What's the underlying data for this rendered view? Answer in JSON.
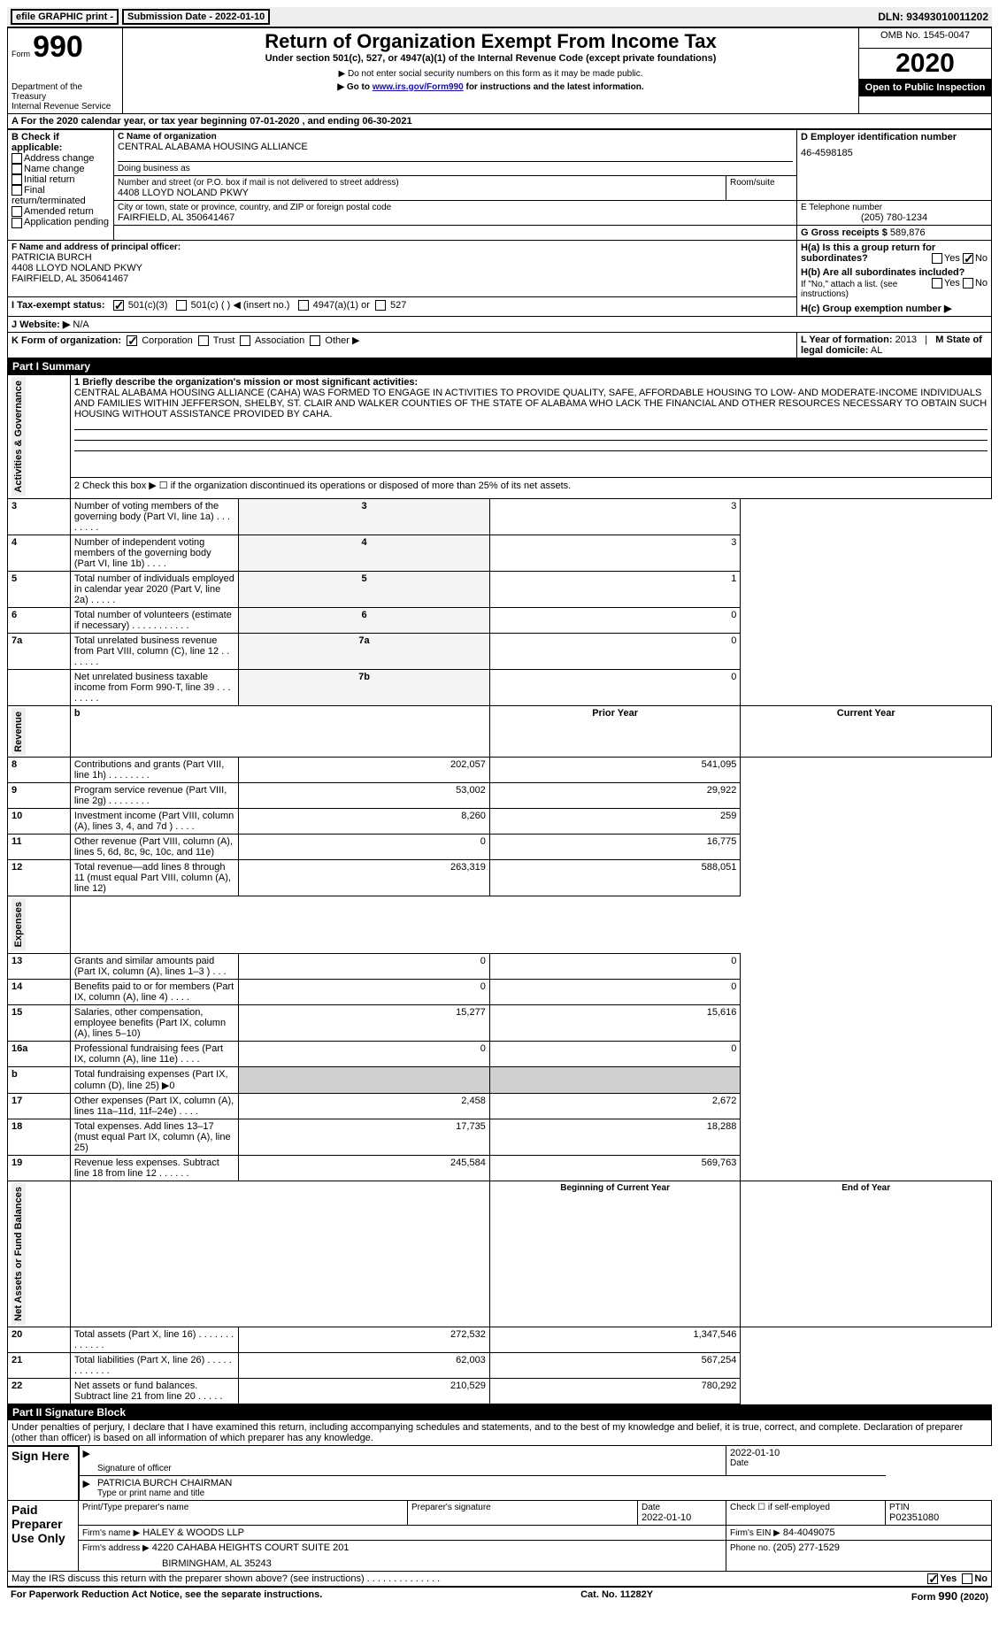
{
  "header": {
    "graphic_print": "efile GRAPHIC print -",
    "submission_date": "Submission Date - 2022-01-10",
    "dln": "DLN: 93493010011202"
  },
  "top_block": {
    "form_word": "Form",
    "form_number": "990",
    "dept": "Department of the Treasury\nInternal Revenue Service",
    "title": "Return of Organization Exempt From Income Tax",
    "subtitle": "Under section 501(c), 527, or 4947(a)(1) of the Internal Revenue Code (except private foundations)",
    "warn": "▶ Do not enter social security numbers on this form as it may be made public.",
    "goto": "▶ Go to www.irs.gov/Form990 for instructions and the latest information.",
    "goto_link": "www.irs.gov/Form990",
    "omb": "OMB No. 1545-0047",
    "year": "2020",
    "open": "Open to Public Inspection"
  },
  "period": "A For the 2020 calendar year, or tax year beginning 07-01-2020    , and ending 06-30-2021",
  "sectionB": {
    "label": "B Check if applicable:",
    "items": [
      "Address change",
      "Name change",
      "Initial return",
      "Final return/terminated",
      "Amended return",
      "Application pending"
    ]
  },
  "sectionC": {
    "name_label": "C Name of organization",
    "name": "CENTRAL ALABAMA HOUSING ALLIANCE",
    "dba_label": "Doing business as",
    "street_label": "Number and street (or P.O. box if mail is not delivered to street address)",
    "street": "4408 LLOYD NOLAND PKWY",
    "room_label": "Room/suite",
    "city_label": "City or town, state or province, country, and ZIP or foreign postal code",
    "city": "FAIRFIELD, AL  350641467"
  },
  "sectionD": {
    "label": "D Employer identification number",
    "value": "46-4598185"
  },
  "sectionE": {
    "label": "E Telephone number",
    "value": "(205) 780-1234"
  },
  "sectionG": {
    "label": "G Gross receipts $",
    "value": "589,876"
  },
  "sectionF": {
    "label": "F Name and address of principal officer:",
    "name": "PATRICIA BURCH",
    "line2": "4408 LLOYD NOLAND PKWY",
    "line3": "FAIRFIELD, AL  350641467"
  },
  "sectionH": {
    "a": "H(a)  Is this a group return for subordinates?",
    "b": "H(b) Are all subordinates included?",
    "b2": "If \"No,\" attach a list. (see instructions)",
    "c": "H(c) Group exemption number ▶",
    "yes": "Yes",
    "no": "No"
  },
  "sectionI": {
    "label": "I  Tax-exempt status:",
    "opt1": "501(c)(3)",
    "opt2": "501(c) (  ) ◀ (insert no.)",
    "opt3": "4947(a)(1) or",
    "opt4": "527"
  },
  "sectionJ": {
    "label": "J Website: ▶",
    "value": "N/A"
  },
  "sectionK": {
    "label": "K Form of organization:",
    "opts": [
      "Corporation",
      "Trust",
      "Association",
      "Other ▶"
    ]
  },
  "sectionL": {
    "label": "L Year of formation:",
    "value": "2013"
  },
  "sectionM": {
    "label": "M State of legal domicile:",
    "value": "AL"
  },
  "part1": {
    "header": "Part I      Summary",
    "rot_activities": "Activities & Governance",
    "rot_revenue": "Revenue",
    "rot_expenses": "Expenses",
    "rot_net": "Net Assets or Fund Balances",
    "line1_label": "1  Briefly describe the organization's mission or most significant activities:",
    "line1_text": "CENTRAL ALABAMA HOUSING ALLIANCE (CAHA) WAS FORMED TO ENGAGE IN ACTIVITIES TO PROVIDE QUALITY, SAFE, AFFORDABLE HOUSING TO LOW- AND MODERATE-INCOME INDIVIDUALS AND FAMILIES WITHIN JEFFERSON, SHELBY, ST. CLAIR AND WALKER COUNTIES OF THE STATE OF ALABAMA WHO LACK THE FINANCIAL AND OTHER RESOURCES NECESSARY TO OBTAIN SUCH HOUSING WITHOUT ASSISTANCE PROVIDED BY CAHA.",
    "line2": "2    Check this box ▶ ☐  if the organization discontinued its operations or disposed of more than 25% of its net assets.",
    "rows_simple": [
      {
        "n": "3",
        "label": "Number of voting members of the governing body (Part VI, line 1a)  .  .  .  .  .  .  .  .",
        "tag": "3",
        "val": "3"
      },
      {
        "n": "4",
        "label": "Number of independent voting members of the governing body (Part VI, line 1b)  .  .  .  .",
        "tag": "4",
        "val": "3"
      },
      {
        "n": "5",
        "label": "Total number of individuals employed in calendar year 2020 (Part V, line 2a)  .  .  .  .  .",
        "tag": "5",
        "val": "1"
      },
      {
        "n": "6",
        "label": "Total number of volunteers (estimate if necessary)  .  .  .  .  .  .  .  .  .  .  .",
        "tag": "6",
        "val": "0"
      },
      {
        "n": "7a",
        "label": "Total unrelated business revenue from Part VIII, column (C), line 12  .  .  .  .  .  .  .",
        "tag": "7a",
        "val": "0"
      },
      {
        "n": "",
        "label": "Net unrelated business taxable income from Form 990-T, line 39  .  .  .  .  .  .  .  .",
        "tag": "7b",
        "val": "0"
      }
    ],
    "col_headers": {
      "prior": "Prior Year",
      "current": "Current Year",
      "beg": "Beginning of Current Year",
      "end": "End of Year"
    },
    "revenue_rows": [
      {
        "n": "8",
        "label": "Contributions and grants (Part VIII, line 1h)  .  .  .  .  .  .  .  .",
        "p": "202,057",
        "c": "541,095"
      },
      {
        "n": "9",
        "label": "Program service revenue (Part VIII, line 2g)  .  .  .  .  .  .  .  .",
        "p": "53,002",
        "c": "29,922"
      },
      {
        "n": "10",
        "label": "Investment income (Part VIII, column (A), lines 3, 4, and 7d )  .  .  .  .",
        "p": "8,260",
        "c": "259"
      },
      {
        "n": "11",
        "label": "Other revenue (Part VIII, column (A), lines 5, 6d, 8c, 9c, 10c, and 11e)",
        "p": "0",
        "c": "16,775"
      },
      {
        "n": "12",
        "label": "Total revenue—add lines 8 through 11 (must equal Part VIII, column (A), line 12)",
        "p": "263,319",
        "c": "588,051"
      }
    ],
    "expense_rows": [
      {
        "n": "13",
        "label": "Grants and similar amounts paid (Part IX, column (A), lines 1–3 )  .  .  .",
        "p": "0",
        "c": "0"
      },
      {
        "n": "14",
        "label": "Benefits paid to or for members (Part IX, column (A), line 4)  .  .  .  .",
        "p": "0",
        "c": "0"
      },
      {
        "n": "15",
        "label": "Salaries, other compensation, employee benefits (Part IX, column (A), lines 5–10)",
        "p": "15,277",
        "c": "15,616"
      },
      {
        "n": "16a",
        "label": "Professional fundraising fees (Part IX, column (A), line 11e)  .  .  .  .",
        "p": "0",
        "c": "0"
      },
      {
        "n": "b",
        "label": "Total fundraising expenses (Part IX, column (D), line 25) ▶0",
        "p": "",
        "c": "",
        "gray": true
      },
      {
        "n": "17",
        "label": "Other expenses (Part IX, column (A), lines 11a–11d, 11f–24e)  .  .  .  .",
        "p": "2,458",
        "c": "2,672"
      },
      {
        "n": "18",
        "label": "Total expenses. Add lines 13–17 (must equal Part IX, column (A), line 25)",
        "p": "17,735",
        "c": "18,288"
      },
      {
        "n": "19",
        "label": "Revenue less expenses. Subtract line 18 from line 12  .  .  .  .  .  .",
        "p": "245,584",
        "c": "569,763"
      }
    ],
    "net_rows": [
      {
        "n": "20",
        "label": "Total assets (Part X, line 16)  .  .  .  .  .  .  .  .  .  .  .  .  .",
        "p": "272,532",
        "c": "1,347,546"
      },
      {
        "n": "21",
        "label": "Total liabilities (Part X, line 26)  .  .  .  .  .  .  .  .  .  .  .  .",
        "p": "62,003",
        "c": "567,254"
      },
      {
        "n": "22",
        "label": "Net assets or fund balances. Subtract line 21 from line 20  .  .  .  .  .",
        "p": "210,529",
        "c": "780,292"
      }
    ]
  },
  "part2": {
    "header": "Part II     Signature Block",
    "perjury": "Under penalties of perjury, I declare that I have examined this return, including accompanying schedules and statements, and to the best of my knowledge and belief, it is true, correct, and complete. Declaration of preparer (other than officer) is based on all information of which preparer has any knowledge.",
    "sign_here": "Sign Here",
    "sig_officer_label": "Signature of officer",
    "sig_date": "2022-01-10",
    "date_label": "Date",
    "officer_name": "PATRICIA BURCH  CHAIRMAN",
    "officer_type_label": "Type or print name and title",
    "paid_label": "Paid Preparer Use Only",
    "preparer_name_label": "Print/Type preparer's name",
    "preparer_sig_label": "Preparer's signature",
    "prep_date_label": "Date",
    "prep_date": "2022-01-10",
    "check_if": "Check ☐ if self-employed",
    "ptin_label": "PTIN",
    "ptin": "P02351080",
    "firm_name_label": "Firm's name   ▶",
    "firm_name": "HALEY & WOODS LLP",
    "firm_ein_label": "Firm's EIN ▶",
    "firm_ein": "84-4049075",
    "firm_addr_label": "Firm's address ▶",
    "firm_addr": "4220 CAHABA HEIGHTS COURT SUITE 201",
    "firm_addr2": "BIRMINGHAM, AL  35243",
    "phone_label": "Phone no.",
    "phone": "(205) 277-1529",
    "may_irs": "May the IRS discuss this return with the preparer shown above? (see instructions)  .  .  .  .  .  .  .  .  .  .  .  .  .  .",
    "yes": "Yes",
    "no": "No"
  },
  "footer": {
    "left": "For Paperwork Reduction Act Notice, see the separate instructions.",
    "mid": "Cat. No. 11282Y",
    "right": "Form 990 (2020)"
  }
}
